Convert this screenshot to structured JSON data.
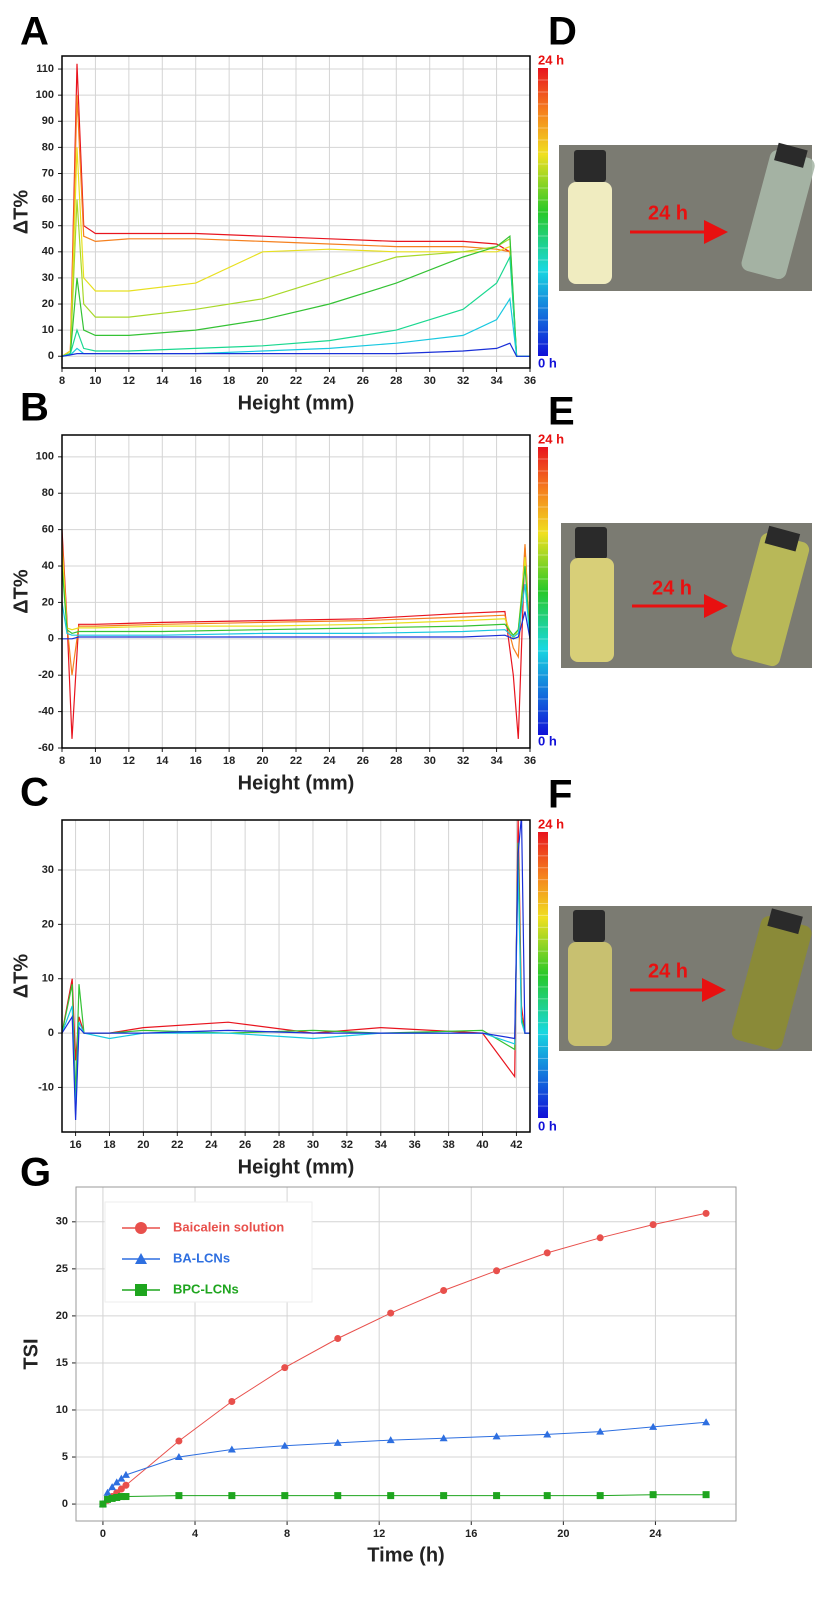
{
  "chart_data": [
    {
      "type": "line",
      "panel": "A",
      "xlabel": "Height (mm)",
      "ylabel": "ΔT%",
      "grid": true,
      "xlim": [
        8,
        36
      ],
      "xticks": [
        8,
        10,
        12,
        14,
        16,
        18,
        20,
        22,
        24,
        26,
        28,
        30,
        32,
        34,
        36
      ],
      "ylim": [
        -4.5,
        115
      ],
      "yticks": [
        0,
        10,
        20,
        30,
        40,
        50,
        60,
        70,
        80,
        90,
        100,
        110
      ],
      "colorbar": {
        "top_label": "24 h",
        "bottom_label": "0 h"
      },
      "x": [
        8,
        8.5,
        8.9,
        9.3,
        10,
        12,
        16,
        20,
        24,
        28,
        32,
        34,
        34.8,
        35.2,
        36
      ],
      "series": [
        {
          "color": "#e8141e",
          "values": [
            0,
            2,
            112,
            50,
            47,
            47,
            47,
            46,
            45,
            44,
            44,
            43,
            40,
            0,
            0
          ]
        },
        {
          "color": "#f5801e",
          "values": [
            0,
            2,
            100,
            46,
            44,
            45,
            45,
            44,
            43,
            42,
            42,
            41,
            40,
            0,
            0
          ]
        },
        {
          "color": "#e8e020",
          "values": [
            0,
            2,
            80,
            30,
            25,
            25,
            28,
            40,
            41,
            40,
            40,
            40,
            42,
            0,
            0
          ]
        },
        {
          "color": "#a8d828",
          "values": [
            0,
            1,
            60,
            20,
            15,
            15,
            18,
            22,
            30,
            38,
            40,
            42,
            45,
            0,
            0
          ]
        },
        {
          "color": "#34c234",
          "values": [
            0,
            1,
            30,
            10,
            8,
            8,
            10,
            14,
            20,
            28,
            38,
            42,
            46,
            0,
            0
          ]
        },
        {
          "color": "#1ad890",
          "values": [
            0,
            1,
            10,
            3,
            2,
            2,
            3,
            4,
            6,
            10,
            18,
            28,
            38,
            0,
            0
          ]
        },
        {
          "color": "#18c8e0",
          "values": [
            0,
            0.5,
            3,
            1,
            1,
            1,
            1,
            2,
            3,
            5,
            8,
            14,
            22,
            0,
            0
          ]
        },
        {
          "color": "#1a30d8",
          "values": [
            0,
            0.5,
            1,
            1,
            1,
            1,
            1,
            1,
            1,
            1,
            2,
            3,
            5,
            0,
            0
          ]
        }
      ]
    },
    {
      "type": "line",
      "panel": "B",
      "xlabel": "Height (mm)",
      "ylabel": "ΔT%",
      "grid": true,
      "xlim": [
        8,
        36
      ],
      "xticks": [
        8,
        10,
        12,
        14,
        16,
        18,
        20,
        22,
        24,
        26,
        28,
        30,
        32,
        34,
        36
      ],
      "ylim": [
        -60,
        112
      ],
      "yticks": [
        -60,
        -40,
        -20,
        0,
        20,
        40,
        60,
        80,
        100
      ],
      "colorbar": {
        "top_label": "24 h",
        "bottom_label": "0 h"
      },
      "x": [
        8,
        8.3,
        8.6,
        9,
        10,
        14,
        20,
        26,
        32,
        34.5,
        35,
        35.3,
        35.7,
        36
      ],
      "series": [
        {
          "color": "#e8141e",
          "values": [
            60,
            10,
            -55,
            8,
            8,
            9,
            10,
            11,
            14,
            15,
            -20,
            -55,
            50,
            0
          ]
        },
        {
          "color": "#f5801e",
          "values": [
            55,
            8,
            -20,
            7,
            7,
            8,
            9,
            10,
            12,
            13,
            -5,
            -10,
            52,
            0
          ]
        },
        {
          "color": "#e8e020",
          "values": [
            50,
            6,
            5,
            6,
            6,
            7,
            7,
            8,
            10,
            11,
            0,
            5,
            45,
            0
          ]
        },
        {
          "color": "#34c234",
          "values": [
            40,
            5,
            3,
            4,
            4,
            4,
            5,
            6,
            7,
            8,
            2,
            5,
            40,
            0
          ]
        },
        {
          "color": "#18c8e0",
          "values": [
            20,
            3,
            2,
            2,
            2,
            2,
            3,
            3,
            4,
            5,
            1,
            3,
            30,
            0
          ]
        },
        {
          "color": "#1a30d8",
          "values": [
            0,
            0,
            0,
            1,
            1,
            1,
            1,
            1,
            1,
            2,
            0,
            1,
            15,
            0
          ]
        }
      ]
    },
    {
      "type": "line",
      "panel": "C",
      "xlabel": "Height (mm)",
      "ylabel": "ΔT%",
      "grid": true,
      "xlim": [
        15.2,
        42.8
      ],
      "xticks": [
        16,
        18,
        20,
        22,
        24,
        26,
        28,
        30,
        32,
        34,
        36,
        38,
        40,
        42
      ],
      "ylim": [
        -18.2,
        39.2
      ],
      "yticks": [
        -10,
        0,
        10,
        20,
        30
      ],
      "colorbar": {
        "top_label": "24 h",
        "bottom_label": "0 h"
      },
      "x": [
        15.2,
        15.8,
        16,
        16.2,
        16.5,
        18,
        20,
        25,
        30,
        34,
        40,
        41.9,
        42.1,
        42.3,
        42.5,
        42.8
      ],
      "series": [
        {
          "color": "#e8141e",
          "values": [
            0,
            10,
            -5,
            3,
            0,
            0,
            1,
            2,
            0,
            1,
            0,
            -8,
            40,
            5,
            0,
            0
          ]
        },
        {
          "color": "#34c234",
          "values": [
            0,
            9,
            -12,
            9,
            0,
            0,
            0.5,
            0,
            0.5,
            0,
            0.5,
            -3,
            35,
            3,
            0,
            0
          ]
        },
        {
          "color": "#18c8e0",
          "values": [
            0,
            5,
            -15,
            2,
            0,
            -1,
            0,
            0,
            -1,
            0,
            0,
            -2,
            30,
            2,
            0,
            0
          ]
        },
        {
          "color": "#1a30d8",
          "values": [
            0,
            3,
            -16,
            1,
            0,
            0,
            0,
            0.5,
            0,
            0,
            0,
            -1,
            33,
            40,
            0,
            0
          ]
        }
      ]
    },
    {
      "type": "line",
      "panel": "G",
      "xlabel": "Time (h)",
      "ylabel": "TSI",
      "grid": true,
      "legend": "upper left",
      "xlim": [
        -1.17,
        27.5
      ],
      "xticks": [
        0,
        4,
        8,
        12,
        16,
        20,
        24
      ],
      "ylim": [
        -1.8,
        33.7
      ],
      "yticks": [
        0,
        5,
        10,
        15,
        20,
        25,
        30
      ],
      "x": [
        0,
        0.2,
        0.4,
        0.6,
        0.8,
        1,
        3.3,
        5.6,
        7.9,
        10.2,
        12.5,
        14.8,
        17.1,
        19.3,
        21.6,
        23.9,
        26.2
      ],
      "series": [
        {
          "name": "Baicalein solution",
          "color": "#e8504c",
          "marker": "circle",
          "values": [
            0,
            0.4,
            0.8,
            1.2,
            1.6,
            2,
            6.7,
            10.9,
            14.5,
            17.6,
            20.3,
            22.7,
            24.8,
            26.7,
            28.3,
            29.7,
            30.9
          ]
        },
        {
          "name": "BA-LCNs",
          "color": "#2e6fe0",
          "marker": "triangle",
          "values": [
            0,
            1.2,
            1.8,
            2.3,
            2.7,
            3.1,
            5,
            5.8,
            6.2,
            6.5,
            6.8,
            7,
            7.2,
            7.4,
            7.7,
            8.2,
            8.7
          ]
        },
        {
          "name": "BPC-LCNs",
          "color": "#1ea51e",
          "marker": "square",
          "values": [
            0,
            0.5,
            0.6,
            0.7,
            0.8,
            0.8,
            0.9,
            0.9,
            0.9,
            0.9,
            0.9,
            0.9,
            0.9,
            0.9,
            0.9,
            1,
            1
          ]
        }
      ]
    }
  ],
  "photos": [
    {
      "panel": "D",
      "label": "24 h"
    },
    {
      "panel": "E",
      "label": "24 h"
    },
    {
      "panel": "F",
      "label": "24 h"
    }
  ]
}
